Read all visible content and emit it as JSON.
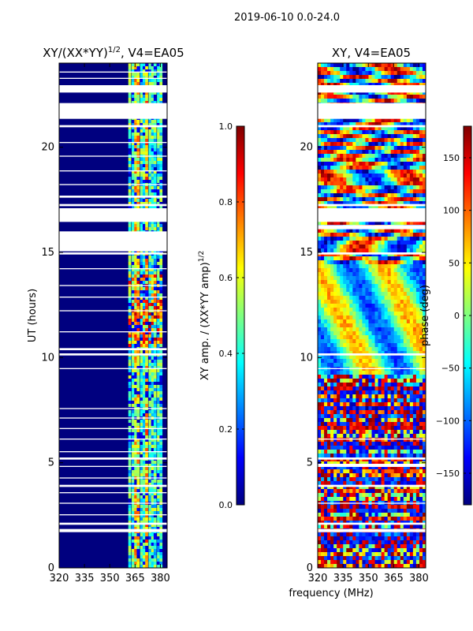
{
  "figure_title": "2019-06-10 0.0-24.0",
  "xlabel": "frequency (MHz)",
  "colors": {
    "jet": [
      "#00007f",
      "#0000ff",
      "#007fff",
      "#00ffff",
      "#7fff7f",
      "#ffff00",
      "#ff7f00",
      "#ff0000",
      "#7f0000"
    ]
  },
  "chart_data": [
    {
      "type": "heatmap",
      "title_main": "XY/(XX*YY)",
      "title_sup": "1/2",
      "title_tail": ", V4=EA05",
      "ylabel": "UT (hours)",
      "xlim": [
        320,
        384
      ],
      "ylim": [
        0,
        24
      ],
      "xticks": [
        320,
        335,
        350,
        365,
        380
      ],
      "yticks": [
        0,
        5,
        10,
        15,
        20
      ],
      "colorbar": {
        "label_main": "XY amp. / (XX*YY amp)",
        "label_sup": "1/2",
        "range": [
          0.0,
          1.0
        ],
        "ticks": [
          {
            "v": 0.0,
            "t": "0.0"
          },
          {
            "v": 0.2,
            "t": "0.2"
          },
          {
            "v": 0.4,
            "t": "0.4"
          },
          {
            "v": 0.6,
            "t": "0.6"
          },
          {
            "v": 0.8,
            "t": "0.8"
          },
          {
            "v": 1.0,
            "t": "1.0"
          }
        ]
      },
      "gaps_hours": [
        [
          1.7,
          1.85
        ],
        [
          2.05,
          2.15
        ],
        [
          2.5,
          2.55
        ],
        [
          3.05,
          3.1
        ],
        [
          3.55,
          3.6
        ],
        [
          3.85,
          3.95
        ],
        [
          4.25,
          4.3
        ],
        [
          4.8,
          4.85
        ],
        [
          5.15,
          5.25
        ],
        [
          5.5,
          5.55
        ],
        [
          6.1,
          6.15
        ],
        [
          6.6,
          6.65
        ],
        [
          7.1,
          7.15
        ],
        [
          7.55,
          7.6
        ],
        [
          9.45,
          9.5
        ],
        [
          10.1,
          10.2
        ],
        [
          10.35,
          10.45
        ],
        [
          11.2,
          11.25
        ],
        [
          12.2,
          12.25
        ],
        [
          12.85,
          12.9
        ],
        [
          13.4,
          13.45
        ],
        [
          14.2,
          14.25
        ],
        [
          14.9,
          15.0
        ],
        [
          15.05,
          16.0
        ],
        [
          16.45,
          17.1
        ],
        [
          17.2,
          17.3
        ],
        [
          17.6,
          17.7
        ],
        [
          18.2,
          18.25
        ],
        [
          18.85,
          18.9
        ],
        [
          19.55,
          19.6
        ],
        [
          20.2,
          20.25
        ],
        [
          20.95,
          21.05
        ],
        [
          21.35,
          22.1
        ],
        [
          22.6,
          22.95
        ],
        [
          23.25,
          23.3
        ],
        [
          23.55,
          23.6
        ]
      ]
    },
    {
      "type": "heatmap",
      "title": "XY, V4=EA05",
      "ylim": [
        0,
        24
      ],
      "xlim": [
        320,
        384
      ],
      "xticks": [
        320,
        335,
        350,
        365,
        380
      ],
      "yticks": [
        0,
        5,
        10,
        15,
        20
      ],
      "colorbar": {
        "label": "phase (deg)",
        "range": [
          -180,
          180
        ],
        "ticks": [
          {
            "v": -150,
            "t": "−150"
          },
          {
            "v": -100,
            "t": "−100"
          },
          {
            "v": -50,
            "t": "−50"
          },
          {
            "v": 0,
            "t": "0"
          },
          {
            "v": 50,
            "t": "50"
          },
          {
            "v": 100,
            "t": "100"
          },
          {
            "v": 150,
            "t": "150"
          }
        ]
      },
      "gaps_hours": [
        [
          1.7,
          1.85
        ],
        [
          2.05,
          2.15
        ],
        [
          3.05,
          3.1
        ],
        [
          3.85,
          3.95
        ],
        [
          4.8,
          4.95
        ],
        [
          5.15,
          5.25
        ],
        [
          6.1,
          6.15
        ],
        [
          9.45,
          9.5
        ],
        [
          10.1,
          10.2
        ],
        [
          14.9,
          15.0
        ],
        [
          16.1,
          16.3
        ],
        [
          16.45,
          17.1
        ],
        [
          17.2,
          17.3
        ],
        [
          20.95,
          21.05
        ],
        [
          21.35,
          22.1
        ],
        [
          22.6,
          22.95
        ]
      ]
    }
  ]
}
